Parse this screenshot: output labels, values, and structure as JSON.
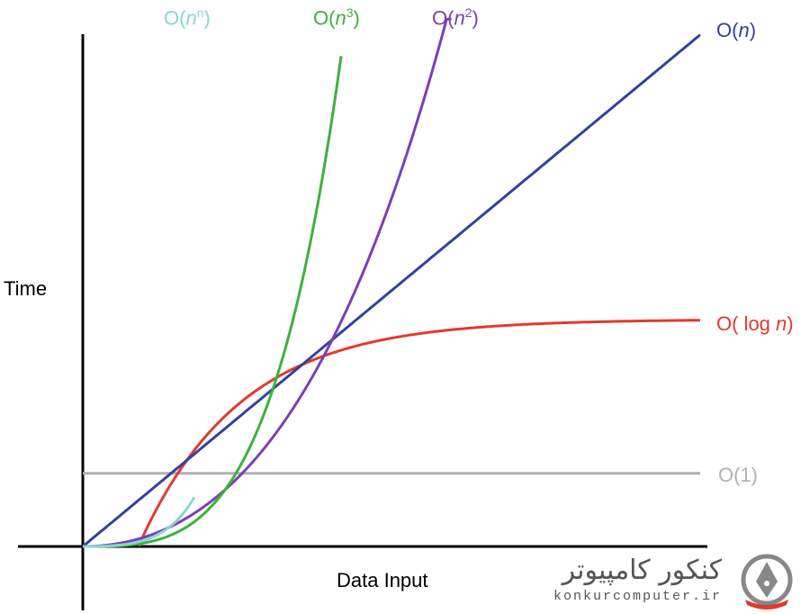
{
  "chart_data": {
    "type": "line",
    "xlabel": "Data Input",
    "ylabel": "Time",
    "x_range": [
      0,
      10
    ],
    "y_range": [
      0,
      10
    ],
    "grid": false,
    "legend": "labels at line ends",
    "series": [
      {
        "id": "o1",
        "name": "O(1)",
        "color": "#b0b0b0",
        "label_parts": [
          [
            "O(1)",
            ""
          ]
        ]
      },
      {
        "id": "ologn",
        "name": "O( log n)",
        "color": "#e03b2c",
        "label_parts": [
          [
            "O( log ",
            ""
          ],
          [
            "n",
            "i"
          ],
          [
            ")",
            ""
          ]
        ]
      },
      {
        "id": "on",
        "name": "O(n)",
        "color": "#3440a0",
        "label_parts": [
          [
            "O(",
            ""
          ],
          [
            "n",
            "i"
          ],
          [
            ")",
            ""
          ]
        ]
      },
      {
        "id": "on2",
        "name": "O(n2)",
        "color": "#7b3fb8",
        "label_parts": [
          [
            "O(",
            ""
          ],
          [
            "n",
            "i"
          ],
          [
            "2",
            "sup"
          ],
          [
            ")",
            ""
          ]
        ]
      },
      {
        "id": "on3",
        "name": "O(n3)",
        "color": "#3bb33b",
        "label_parts": [
          [
            "O(",
            ""
          ],
          [
            "n",
            "i"
          ],
          [
            "3",
            "sup"
          ],
          [
            ")",
            ""
          ]
        ]
      },
      {
        "id": "onn",
        "name": "O(nn)",
        "color": "#86d8d2",
        "label_parts": [
          [
            "O(",
            ""
          ],
          [
            "n",
            "i"
          ],
          [
            "n",
            "sup"
          ],
          [
            ")",
            ""
          ]
        ]
      }
    ]
  },
  "watermark": {
    "text_fa": "کنکور کامپیوتر",
    "text_en": "konkurcomputer.ir",
    "color": "#555555",
    "accent": "#e03b2c"
  }
}
